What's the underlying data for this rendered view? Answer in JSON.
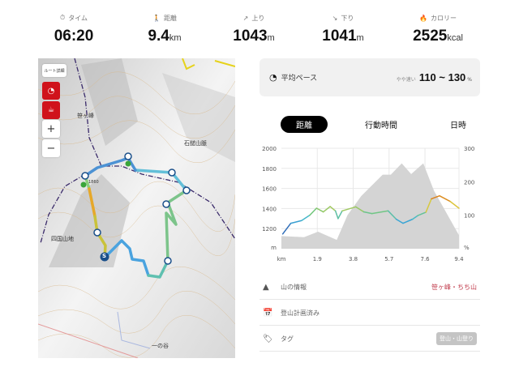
{
  "stats": [
    {
      "icon": "stopwatch-icon",
      "label": "タイム",
      "value": "06:20",
      "unit": ""
    },
    {
      "icon": "walker-icon",
      "label": "距離",
      "value": "9.4",
      "unit": "km"
    },
    {
      "icon": "arrow-up-right-icon",
      "label": "上り",
      "value": "1043",
      "unit": "m"
    },
    {
      "icon": "arrow-down-right-icon",
      "label": "下り",
      "value": "1041",
      "unit": "m"
    },
    {
      "icon": "flame-icon",
      "label": "カロリー",
      "value": "2525",
      "unit": "kcal"
    }
  ],
  "map": {
    "route_detail_label": "ルート詳細",
    "zoom_in": "+",
    "zoom_out": "−",
    "labels": {
      "peak": "笹ヶ峰",
      "peak_elev": "1860",
      "range1": "石鎚山脈",
      "range2": "四国山地",
      "valley": "一の谷"
    },
    "start_marker": "S"
  },
  "pace": {
    "label": "平均ペース",
    "qualifier": "やや速い",
    "value": "110 ~ 130",
    "unit": "%"
  },
  "tabs": [
    {
      "label": "距離",
      "active": true
    },
    {
      "label": "行動時間",
      "active": false
    },
    {
      "label": "日時",
      "active": false
    }
  ],
  "chart_data": {
    "type": "area",
    "xlabel": "km",
    "ylabel": "m",
    "y2label": "%",
    "xticks": [
      "1.9",
      "3.8",
      "5.7",
      "7.6",
      "9.4"
    ],
    "xlim": [
      0,
      9.4
    ],
    "yticks": [
      2000,
      1800,
      1600,
      1400,
      1200
    ],
    "ylim": [
      1000,
      2000
    ],
    "y2ticks": [
      300,
      200,
      100
    ],
    "y2lim": [
      0,
      300
    ],
    "grid": true,
    "elevation": {
      "x": [
        0,
        1.2,
        1.94,
        2.93,
        3.5,
        4.22,
        5.36,
        5.79,
        6.37,
        6.87,
        7.51,
        8.08,
        9.4
      ],
      "y": [
        1126,
        1115,
        1169,
        1088,
        1335,
        1523,
        1737,
        1737,
        1850,
        1743,
        1850,
        1576,
        1134
      ]
    },
    "pace": {
      "x": [
        0.07,
        0.5,
        1.07,
        1.5,
        1.86,
        2.22,
        2.58,
        2.86,
        3.0,
        3.22,
        3.94,
        4.36,
        4.79,
        5.65,
        6.08,
        6.44,
        6.94,
        7.22,
        7.65,
        7.94,
        8.37,
        8.94,
        9.4
      ],
      "y": [
        44,
        76,
        84,
        100,
        121,
        110,
        126,
        113,
        90,
        113,
        125,
        110,
        105,
        113,
        88,
        76,
        88,
        99,
        109,
        149,
        158,
        141,
        121
      ]
    }
  },
  "rows": [
    {
      "icon": "mountain-icon",
      "label": "山の情報",
      "value": "笹ヶ峰・ちち山"
    },
    {
      "icon": "calendar-icon",
      "label": "登山計画済み",
      "value": ""
    },
    {
      "icon": "tag-icon",
      "label": "タグ",
      "value": "登山・山登り"
    }
  ],
  "colors": {
    "accent": "#d0121b",
    "mountain_link": "#c0394a",
    "tag_bg": "#c4c4c4"
  }
}
